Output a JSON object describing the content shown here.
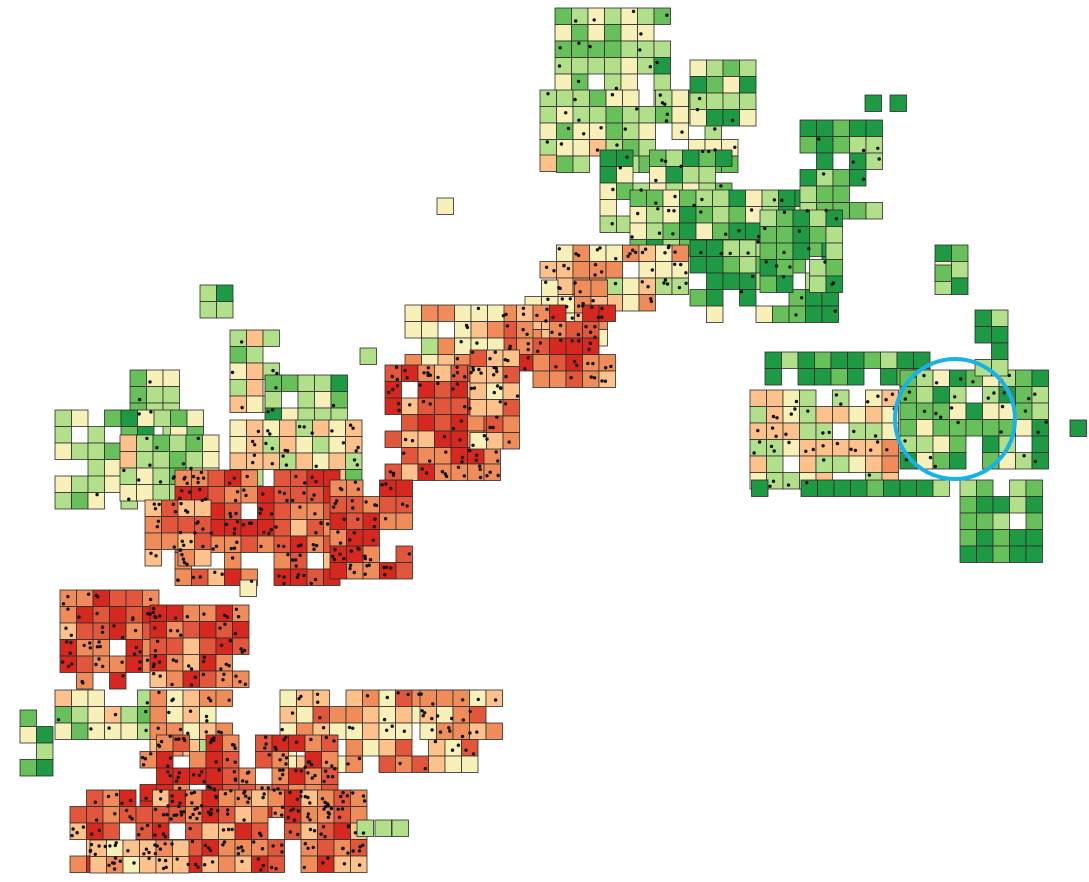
{
  "map": {
    "type": "grid-choropleth",
    "legend": null,
    "colors": {
      "class_1_dark_green": "#1e9a45",
      "class_2_mid_green": "#67c05a",
      "class_3_light_green": "#b2df8a",
      "class_4_pale_yellow": "#f7f0b8",
      "class_5_light_orange": "#fdc28b",
      "class_6_orange": "#f08c5a",
      "class_7_red_orange": "#e2573c",
      "class_8_red": "#d7281f",
      "point_color": "#111111",
      "highlight_circle": "#1ab0e8",
      "background": "#ffffff"
    },
    "highlight": {
      "shape": "circle",
      "description": "highlighted-region"
    }
  }
}
